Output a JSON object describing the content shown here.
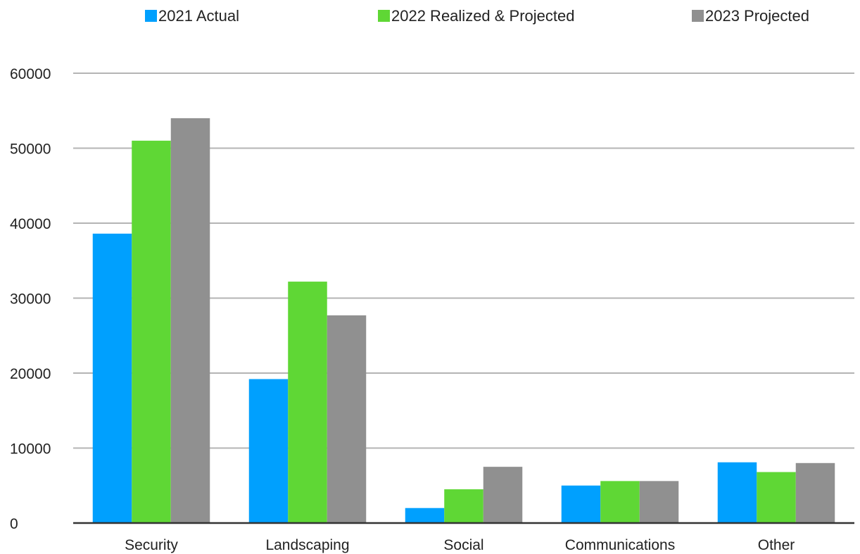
{
  "chart_data": {
    "type": "bar",
    "title": "",
    "xlabel": "",
    "ylabel": "",
    "categories": [
      "Security",
      "Landscaping",
      "Social",
      "Communications",
      "Other"
    ],
    "series": [
      {
        "name": "2021 Actual",
        "color": "#00a0fe",
        "values": [
          38600,
          19200,
          2000,
          5000,
          8100
        ]
      },
      {
        "name": "2022 Realized & Projected",
        "color": "#5fd735",
        "values": [
          51000,
          32200,
          4500,
          5600,
          6800
        ]
      },
      {
        "name": "2023 Projected",
        "color": "#909090",
        "values": [
          54000,
          27700,
          7500,
          5600,
          8000
        ]
      }
    ],
    "ylim": [
      0,
      60000
    ],
    "yticks": [
      0,
      10000,
      20000,
      30000,
      40000,
      50000,
      60000
    ],
    "grid": true,
    "legend_position": "top"
  }
}
